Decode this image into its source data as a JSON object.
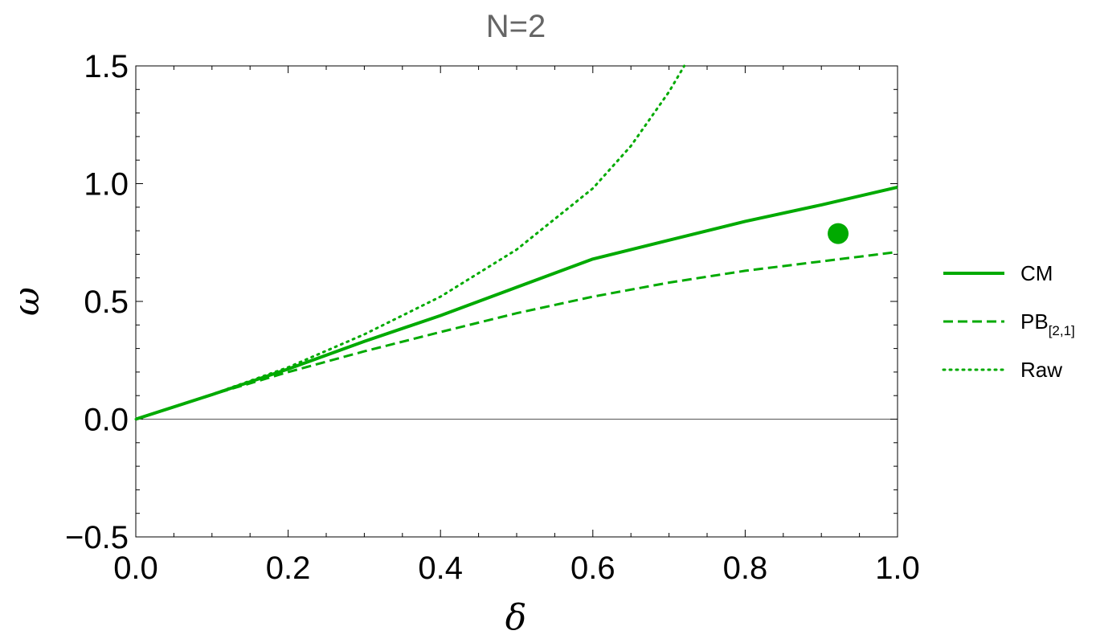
{
  "chart_data": {
    "type": "line",
    "title": "N=2",
    "xlabel": "δ",
    "ylabel": "ω",
    "xlim": [
      0.0,
      1.0
    ],
    "ylim": [
      -0.5,
      1.5
    ],
    "x_ticks": [
      "0.0",
      "0.2",
      "0.4",
      "0.6",
      "0.8",
      "1.0"
    ],
    "x_tick_values": [
      0.0,
      0.2,
      0.4,
      0.6,
      0.8,
      1.0
    ],
    "y_ticks": [
      "−0.5",
      "0.0",
      "0.5",
      "1.0",
      "1.5"
    ],
    "y_tick_values": [
      -0.5,
      0.0,
      0.5,
      1.0,
      1.5
    ],
    "grid": false,
    "legend_position": "right",
    "color": "#00aa00",
    "series": [
      {
        "name": "CM",
        "style": "solid",
        "x": [
          0.0,
          0.1,
          0.2,
          0.3,
          0.4,
          0.5,
          0.6,
          0.7,
          0.8,
          0.9,
          1.0
        ],
        "y": [
          0.0,
          0.104,
          0.213,
          0.33,
          0.44,
          0.56,
          0.68,
          0.76,
          0.84,
          0.91,
          0.985
        ]
      },
      {
        "name": "PB",
        "name_subscript": "[2,1]",
        "style": "dashed",
        "x": [
          0.0,
          0.1,
          0.2,
          0.3,
          0.4,
          0.5,
          0.6,
          0.7,
          0.8,
          0.9,
          1.0
        ],
        "y": [
          0.0,
          0.104,
          0.2,
          0.288,
          0.37,
          0.45,
          0.52,
          0.58,
          0.63,
          0.67,
          0.71
        ]
      },
      {
        "name": "Raw",
        "style": "dotted",
        "x": [
          0.0,
          0.1,
          0.2,
          0.3,
          0.4,
          0.5,
          0.6,
          0.65,
          0.7,
          0.72
        ],
        "y": [
          0.0,
          0.105,
          0.22,
          0.36,
          0.52,
          0.72,
          0.98,
          1.16,
          1.39,
          1.5
        ]
      }
    ],
    "points": [
      {
        "x": 0.922,
        "y": 0.788
      }
    ]
  }
}
